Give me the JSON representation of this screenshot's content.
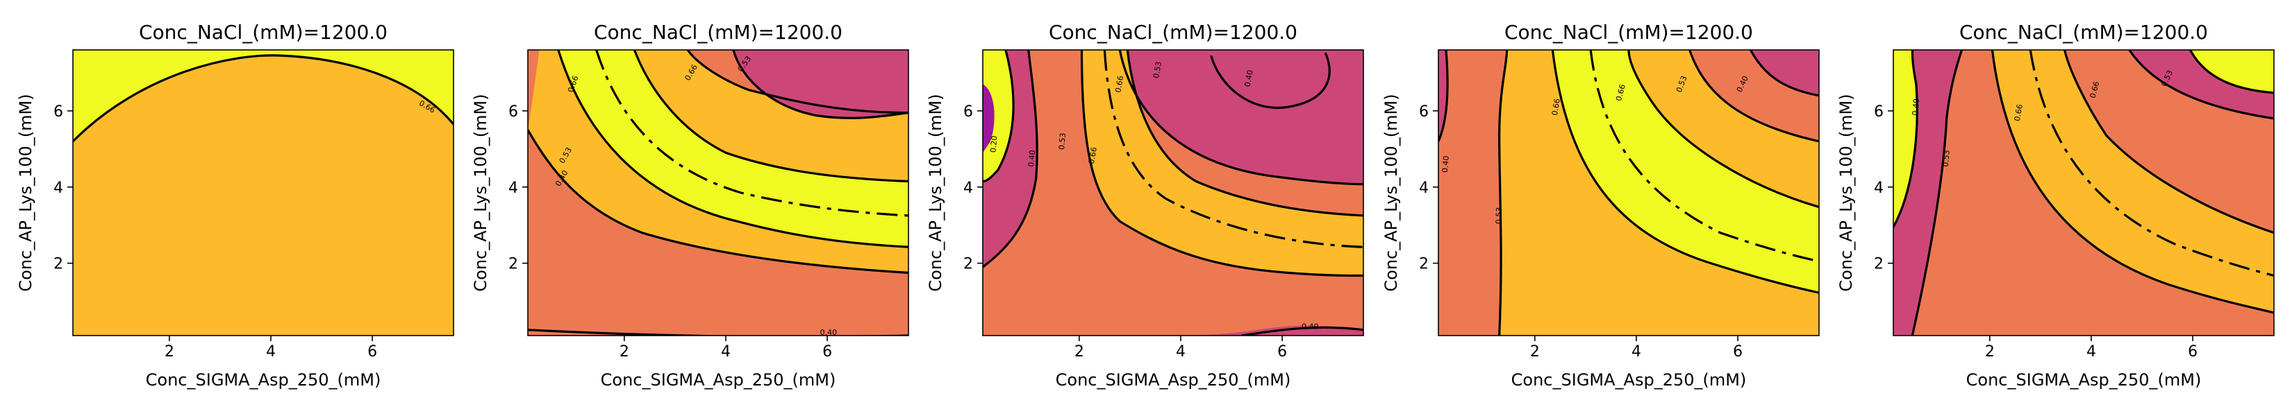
{
  "chart_data": [
    {
      "type": "contour",
      "title": "Conc_NaCl_(mM)=1200.0",
      "xlabel": "Conc_SIGMA_Asp_250_(mM)",
      "ylabel": "Conc_AP_Lys_100_(mM)",
      "xlim": [
        0.1,
        7.6
      ],
      "ylim": [
        0.1,
        7.6
      ],
      "xticks": [
        2,
        4,
        6
      ],
      "yticks": [
        2,
        4,
        6
      ],
      "region_colors": [
        "#FDBB2C",
        "#F0F921"
      ],
      "contour_labels": [
        "0.66"
      ]
    },
    {
      "type": "contour",
      "title": "Conc_NaCl_(mM)=1200.0",
      "xlabel": "Conc_SIGMA_Asp_250_(mM)",
      "ylabel": "Conc_AP_Lys_100_(mM)",
      "xlim": [
        0.1,
        7.6
      ],
      "ylim": [
        0.1,
        7.6
      ],
      "xticks": [
        2,
        4,
        6
      ],
      "yticks": [
        2,
        4,
        6
      ],
      "region_colors": [
        "#ED7953",
        "#FDBB2C",
        "#F0F921",
        "#CC4778"
      ],
      "contour_labels": [
        "0.66",
        "0.53",
        "0.40",
        "0.66",
        "0.53",
        "0.40"
      ]
    },
    {
      "type": "contour",
      "title": "Conc_NaCl_(mM)=1200.0",
      "xlabel": "Conc_SIGMA_Asp_250_(mM)",
      "ylabel": "Conc_AP_Lys_100_(mM)",
      "xlim": [
        0.1,
        7.6
      ],
      "ylim": [
        0.1,
        7.6
      ],
      "xticks": [
        2,
        4,
        6
      ],
      "yticks": [
        2,
        4,
        6
      ],
      "region_colors": [
        "#CC4778",
        "#ED7953",
        "#FDBB2C",
        "#F0F921",
        "#9C179E"
      ],
      "contour_labels": [
        "0.40",
        "0.53",
        "0.66",
        "0.66",
        "0.53",
        "0.40",
        "0.40",
        "0.20"
      ]
    },
    {
      "type": "contour",
      "title": "Conc_NaCl_(mM)=1200.0",
      "xlabel": "Conc_SIGMA_Asp_250_(mM)",
      "ylabel": "Conc_AP_Lys_100_(mM)",
      "xlim": [
        0.1,
        7.6
      ],
      "ylim": [
        0.1,
        7.6
      ],
      "xticks": [
        2,
        4,
        6
      ],
      "yticks": [
        2,
        4,
        6
      ],
      "region_colors": [
        "#ED7953",
        "#FDBB2C",
        "#F0F921",
        "#CC4778"
      ],
      "contour_labels": [
        "0.40",
        "0.53",
        "0.66",
        "0.66",
        "0.53",
        "0.40"
      ]
    },
    {
      "type": "contour",
      "title": "Conc_NaCl_(mM)=1200.0",
      "xlabel": "Conc_SIGMA_Asp_250_(mM)",
      "ylabel": "Conc_AP_Lys_100_(mM)",
      "xlim": [
        0.1,
        7.6
      ],
      "ylim": [
        0.1,
        7.6
      ],
      "xticks": [
        2,
        4,
        6
      ],
      "yticks": [
        2,
        4,
        6
      ],
      "region_colors": [
        "#CC4778",
        "#ED7953",
        "#FDBB2C",
        "#F0F921"
      ],
      "contour_labels": [
        "0.40",
        "0.53",
        "0.66",
        "0.66",
        "0.53"
      ]
    }
  ]
}
